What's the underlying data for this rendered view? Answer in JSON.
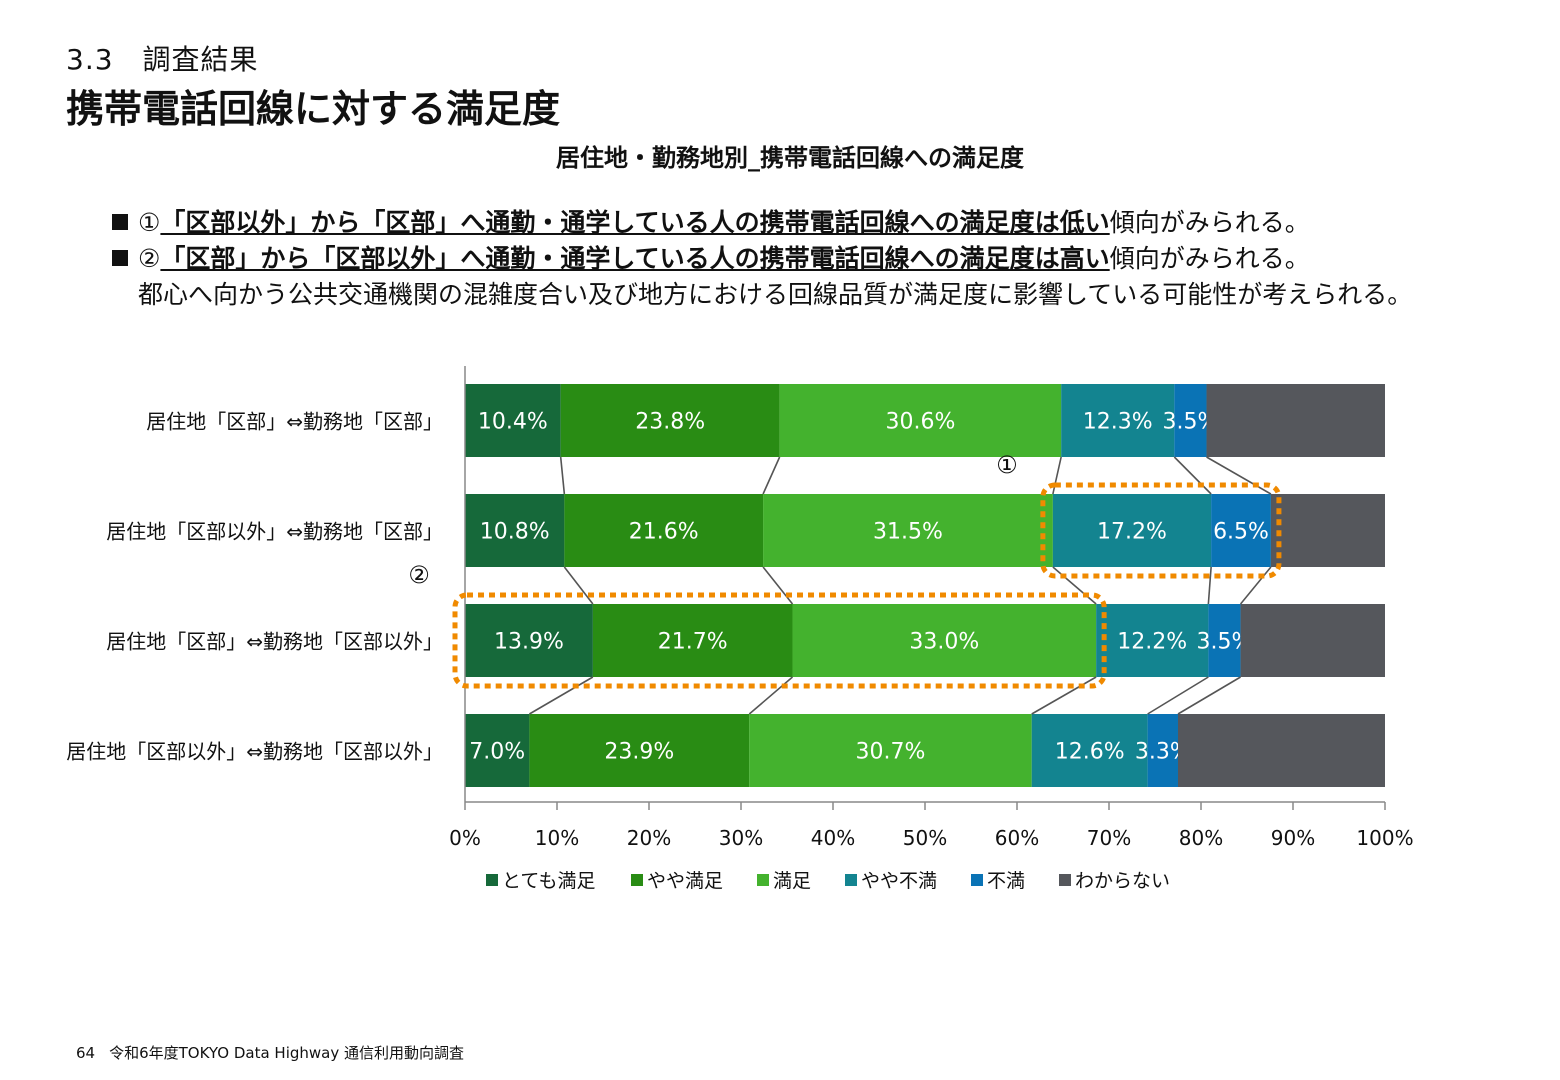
{
  "header": {
    "section": "3.3　調査結果",
    "title": "携帯電話回線に対する満足度"
  },
  "findings": [
    {
      "bullet": "①",
      "emph": "「区部以外」から「区部」へ通勤・通学している人の携帯電話回線への満足度は低い",
      "rest": "傾向がみられる。"
    },
    {
      "bullet": "②",
      "emph": "「区部」から「区部以外」へ通勤・通学している人の携帯電話回線への満足度は高い",
      "rest": "傾向がみられる。"
    }
  ],
  "note": "都心へ向かう公共交通機関の混雑度合い及び地方における回線品質が満足度に影響している可能性が考えられる。",
  "chart_data": {
    "type": "bar",
    "orientation": "horizontal",
    "stacked": "100%",
    "title": "居住地・勤務地別_携帯電話回線への満足度",
    "categories": [
      "居住地「区部」⇔勤務地「区部」",
      "居住地「区部以外」⇔勤務地「区部」",
      "居住地「区部」⇔勤務地「区部以外」",
      "居住地「区部以外」⇔勤務地「区部以外」"
    ],
    "series": [
      {
        "name": "とても満足",
        "color": "#16693A",
        "values": [
          10.4,
          10.8,
          13.9,
          7.0
        ]
      },
      {
        "name": "やや満足",
        "color": "#298C14",
        "values": [
          23.8,
          21.6,
          21.7,
          23.9
        ]
      },
      {
        "name": "満足",
        "color": "#44B22E",
        "values": [
          30.6,
          31.5,
          33.0,
          30.7
        ]
      },
      {
        "name": "やや不満",
        "color": "#138490",
        "values": [
          12.3,
          17.2,
          12.2,
          12.6
        ]
      },
      {
        "name": "不満",
        "color": "#0A73B5",
        "values": [
          3.5,
          6.5,
          3.5,
          3.3
        ]
      },
      {
        "name": "わからない",
        "color": "#55575C",
        "values": [
          19.4,
          12.4,
          15.7,
          22.5
        ]
      }
    ],
    "labeled_series": [
      0,
      1,
      2,
      3,
      4
    ],
    "xlim": [
      0,
      100
    ],
    "xticks": [
      "0%",
      "10%",
      "20%",
      "30%",
      "40%",
      "50%",
      "60%",
      "70%",
      "80%",
      "90%",
      "100%"
    ],
    "legend": "bottom",
    "series_lines": true,
    "highlights": [
      {
        "label": "①",
        "category_index": 1,
        "series_from": 3,
        "series_to": 4,
        "color": "#F08A00"
      },
      {
        "label": "②",
        "category_index": 2,
        "series_from": 0,
        "series_to": 2,
        "color": "#F08A00"
      }
    ]
  },
  "footer": {
    "page": "64",
    "text": "令和6年度TOKYO Data Highway 通信利用動向調査"
  }
}
